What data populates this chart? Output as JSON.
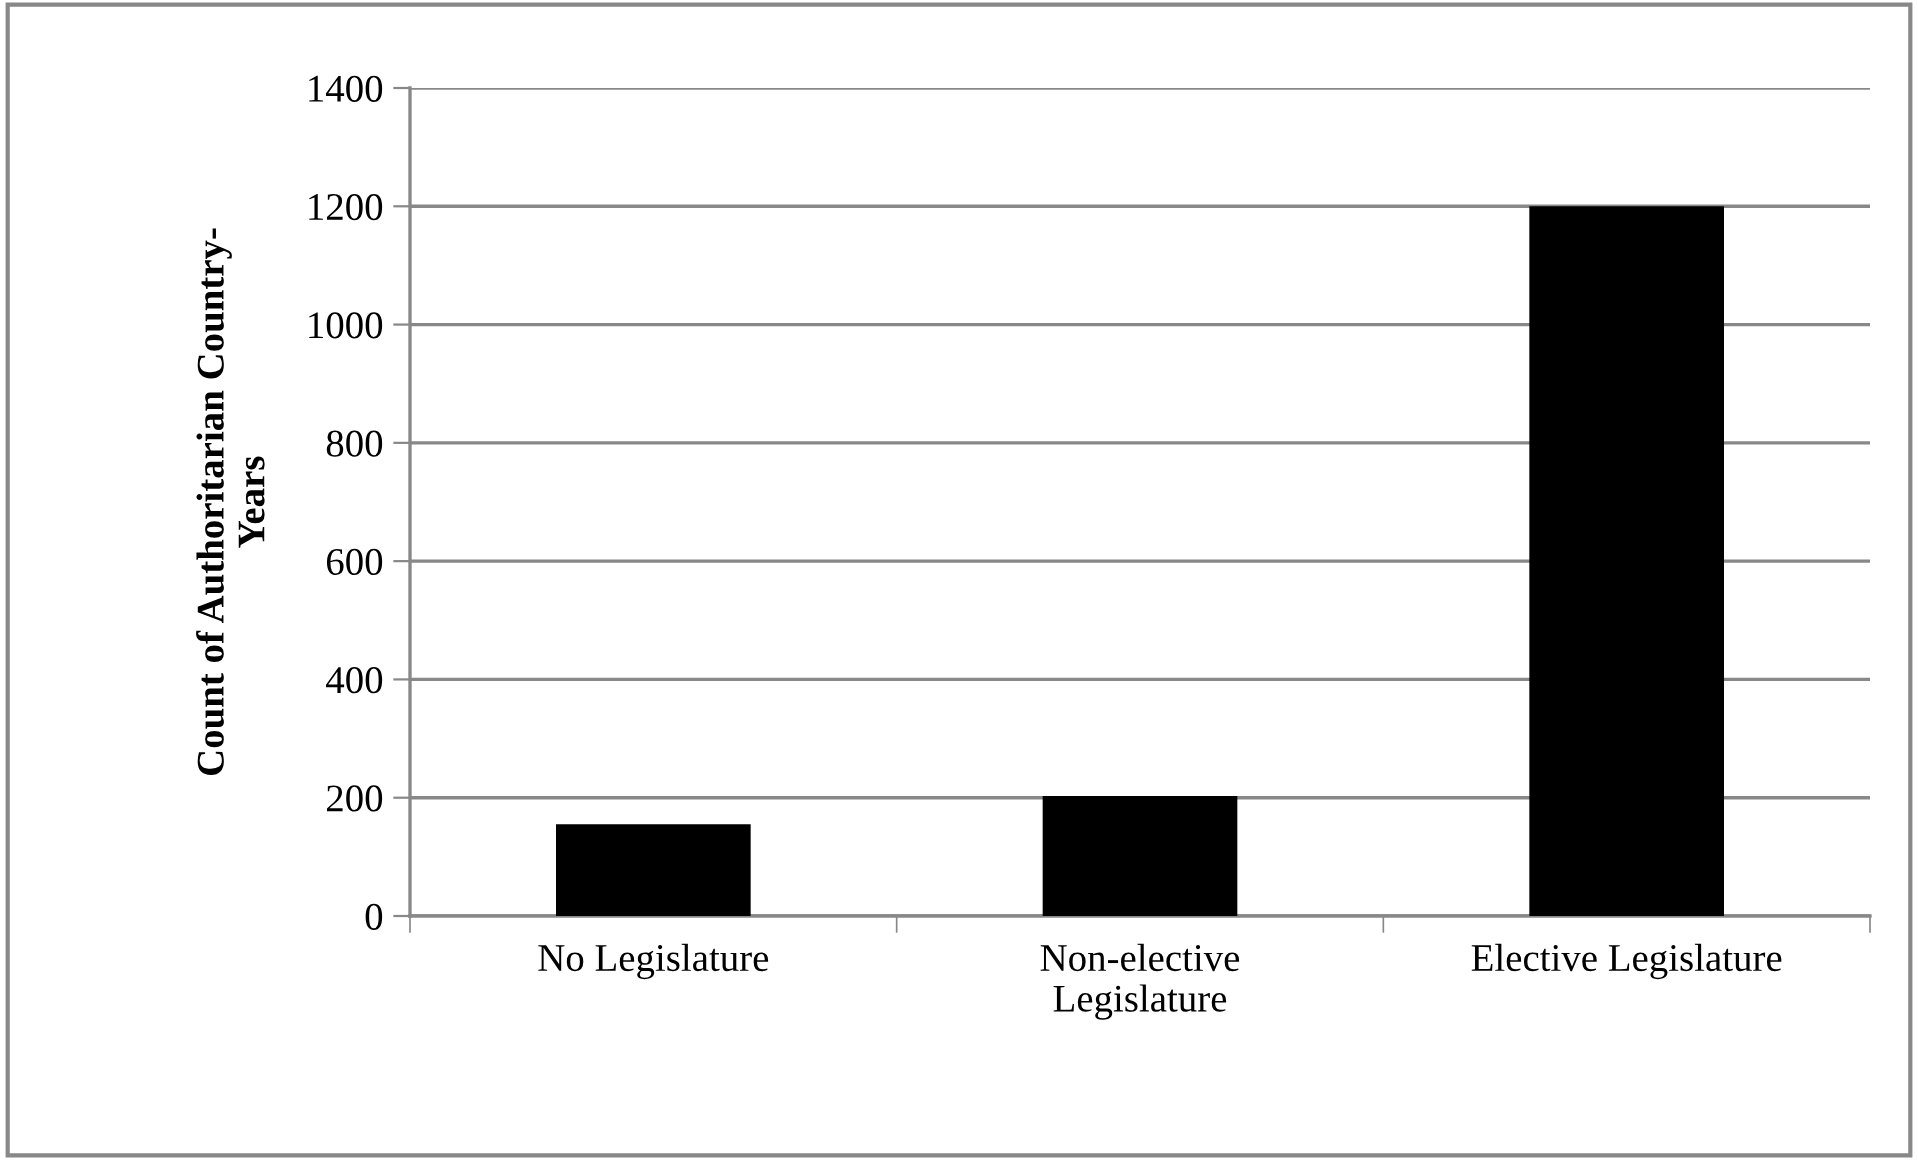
{
  "chart_data": {
    "type": "bar",
    "ylabel": "Count of Authoritarian Country-\nYears",
    "categories": [
      "No Legislature",
      "Non-elective\nLegislature",
      "Elective Legislature"
    ],
    "values": [
      155,
      203,
      1200
    ],
    "color": "#000000",
    "ylim": [
      0,
      1400
    ],
    "yticks": [
      0,
      200,
      400,
      600,
      800,
      1000,
      1200,
      1400
    ],
    "grid": "y",
    "legend": false
  }
}
